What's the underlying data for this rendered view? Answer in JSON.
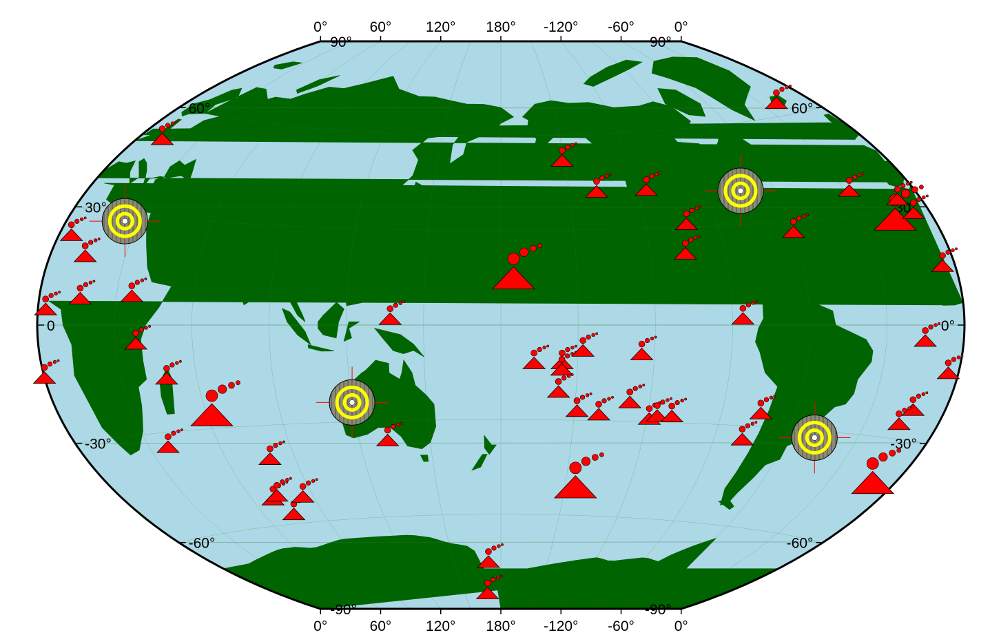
{
  "map": {
    "projection": "Winkel Tripel (Pacific-centered, lon0=180)",
    "colors": {
      "ocean": "#add8e6",
      "land": "#006400",
      "border": "#000000",
      "volcano_fill": "#ff0000",
      "volcano_stroke": "#000000",
      "target_outer": "#8b8b78",
      "target_ring": "#ffff00",
      "target_cross": "#ff0000",
      "grid": "#2e7d32"
    },
    "top_lon_labels": [
      "0°",
      "60°",
      "120°",
      "180°",
      "-120°",
      "-60°",
      "0°"
    ],
    "bottom_lon_labels": [
      "0°",
      "60°",
      "120°",
      "180°",
      "-120°",
      "-60°",
      "0°"
    ],
    "lat_labels_left": [
      "90°",
      "60°",
      "30°",
      "0°",
      "-30°",
      "-60°",
      "-90°"
    ],
    "lat_labels_right": [
      "90°",
      "60°",
      "30°",
      "0",
      "-30°",
      "-60°",
      "-90°"
    ],
    "volcanoes": [
      {
        "lon": 12,
        "lat": 51,
        "size": "s"
      },
      {
        "lon": 5,
        "lat": 23,
        "size": "s"
      },
      {
        "lon": 14,
        "lat": 18,
        "size": "s"
      },
      {
        "lon": 16,
        "lat": 7,
        "size": "s"
      },
      {
        "lon": 36,
        "lat": 8,
        "size": "s"
      },
      {
        "lon": 3,
        "lat": 4,
        "size": "s"
      },
      {
        "lon": 38,
        "lat": -5,
        "size": "s"
      },
      {
        "lon": 48,
        "lat": -15,
        "size": "s"
      },
      {
        "lon": 62,
        "lat": -26,
        "size": "l"
      },
      {
        "lon": 38,
        "lat": -34,
        "size": "s"
      },
      {
        "lon": 79,
        "lat": -40,
        "size": "s"
      },
      {
        "lon": 70,
        "lat": -52,
        "size": "s"
      },
      {
        "lon": 73,
        "lat": -51,
        "size": "s"
      },
      {
        "lon": 75,
        "lat": -57,
        "size": "s"
      },
      {
        "lon": 85,
        "lat": -52,
        "size": "s"
      },
      {
        "lon": 137,
        "lat": 2,
        "size": "s"
      },
      {
        "lon": 132,
        "lat": -36,
        "size": "s"
      },
      {
        "lon": 172,
        "lat": -75,
        "size": "s"
      },
      {
        "lon": 169,
        "lat": -85,
        "size": "s"
      },
      {
        "lon": -167,
        "lat": -12,
        "size": "s"
      },
      {
        "lon": -175,
        "lat": 15,
        "size": "l"
      },
      {
        "lon": -156,
        "lat": -12,
        "size": "s"
      },
      {
        "lon": -156,
        "lat": -14,
        "size": "s"
      },
      {
        "lon": -157,
        "lat": -21,
        "size": "s"
      },
      {
        "lon": -148,
        "lat": -8,
        "size": "s"
      },
      {
        "lon": -149,
        "lat": -27,
        "size": "s"
      },
      {
        "lon": -140,
        "lat": -28,
        "size": "s"
      },
      {
        "lon": -128,
        "lat": -24,
        "size": "s"
      },
      {
        "lon": -125,
        "lat": -9,
        "size": "s"
      },
      {
        "lon": -145,
        "lat": -51,
        "size": "l"
      },
      {
        "lon": -119,
        "lat": -29,
        "size": "s"
      },
      {
        "lon": -116,
        "lat": -28,
        "size": "s"
      },
      {
        "lon": -110,
        "lat": -28,
        "size": "s"
      },
      {
        "lon": -151,
        "lat": 52,
        "size": "s"
      },
      {
        "lon": -138,
        "lat": 42,
        "size": "s"
      },
      {
        "lon": -116,
        "lat": 42,
        "size": "s"
      },
      {
        "lon": -103,
        "lat": 31,
        "size": "s"
      },
      {
        "lon": -106,
        "lat": 22,
        "size": "s"
      },
      {
        "lon": -86,
        "lat": 2,
        "size": "s"
      },
      {
        "lon": -74,
        "lat": -26,
        "size": "s"
      },
      {
        "lon": -78,
        "lat": -34,
        "size": "s"
      },
      {
        "lon": -60,
        "lat": 27,
        "size": "s"
      },
      {
        "lon": -21,
        "lat": 64,
        "size": "s"
      },
      {
        "lon": -28,
        "lat": 37,
        "size": "s"
      },
      {
        "lon": -16,
        "lat": 28,
        "size": "l"
      },
      {
        "lon": -10,
        "lat": 33,
        "size": "s"
      },
      {
        "lon": -7,
        "lat": 29,
        "size": "s"
      },
      {
        "lon": -5,
        "lat": 15,
        "size": "s"
      },
      {
        "lon": -15,
        "lat": -4,
        "size": "s"
      },
      {
        "lon": -13,
        "lat": -22,
        "size": "s"
      },
      {
        "lon": -16,
        "lat": -26,
        "size": "s"
      },
      {
        "lon": -4,
        "lat": -12,
        "size": "s"
      },
      {
        "lon": 0,
        "lat": -13,
        "size": "s"
      },
      {
        "lon": -10,
        "lat": -42,
        "size": "l"
      }
    ],
    "targets": [
      {
        "lon": 24,
        "lat": 28
      },
      {
        "lon": 120,
        "lat": -24
      },
      {
        "lon": -75,
        "lat": 40
      },
      {
        "lon": -48,
        "lat": -32
      }
    ]
  }
}
